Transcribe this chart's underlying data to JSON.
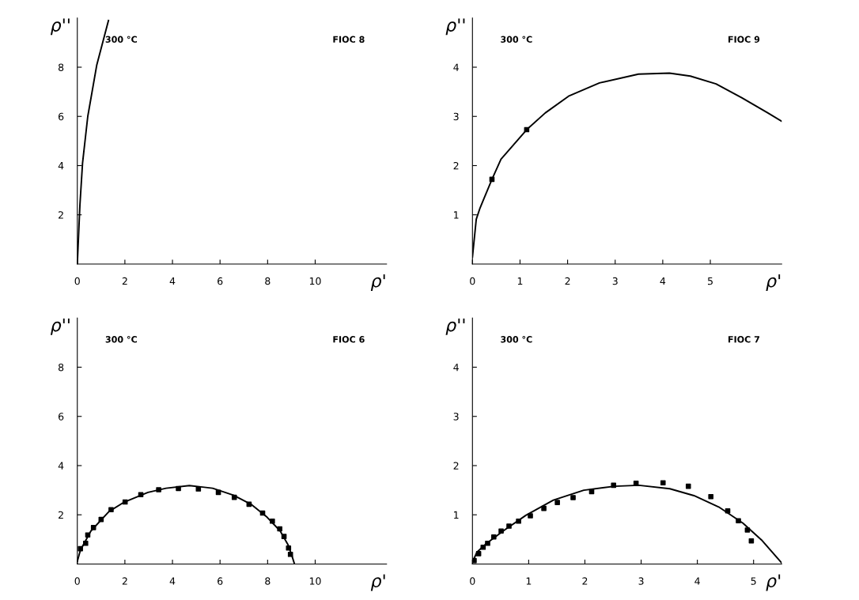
{
  "chart_data": [
    {
      "type": "line",
      "xlabel": "ρ'",
      "ylabel": "ρ''",
      "annotations": [
        "300 °C",
        "FIOC 8"
      ],
      "xlim": [
        0,
        13
      ],
      "ylim": [
        0,
        10
      ],
      "xticks": [
        0,
        2,
        4,
        6,
        8,
        10
      ],
      "yticks": [
        2,
        4,
        6,
        8
      ],
      "grid": false,
      "series": [
        {
          "color": "#000000",
          "x": [
            0,
            0.11,
            0.22,
            0.44,
            0.82,
            1.31
          ],
          "values": [
            0,
            2.4,
            4.1,
            6.0,
            8.1,
            9.9
          ]
        }
      ]
    },
    {
      "type": "line",
      "xlabel": "ρ'",
      "ylabel": "ρ''",
      "annotations": [
        "300 °C",
        "FIOC 9"
      ],
      "xlim": [
        0,
        6.5
      ],
      "ylim": [
        0,
        5
      ],
      "xticks": [
        0,
        1,
        2,
        3,
        4,
        5
      ],
      "yticks": [
        1,
        2,
        3,
        4
      ],
      "grid": false,
      "series": [
        {
          "color": "#000000",
          "x": [
            0,
            0.08,
            0.16,
            0.41,
            0.6,
            1.14,
            1.53,
            2.02,
            2.67,
            3.49,
            4.14,
            4.58,
            5.12,
            5.66,
            6.21,
            6.5
          ],
          "values": [
            0.14,
            0.91,
            1.14,
            1.72,
            2.13,
            2.73,
            3.07,
            3.41,
            3.68,
            3.86,
            3.88,
            3.82,
            3.66,
            3.38,
            3.07,
            2.9
          ]
        },
        {
          "type": "scatter",
          "marker": "square",
          "color": "#000000",
          "x": [
            0.41,
            1.14
          ],
          "values": [
            1.72,
            2.73
          ]
        }
      ]
    },
    {
      "type": "line",
      "xlabel": "ρ'",
      "ylabel": "ρ''",
      "annotations": [
        "300 °C",
        "FIOC 6"
      ],
      "xlim": [
        0,
        13
      ],
      "ylim": [
        0,
        10
      ],
      "xticks": [
        0,
        2,
        4,
        6,
        8,
        10
      ],
      "yticks": [
        2,
        4,
        6,
        8
      ],
      "grid": false,
      "series": [
        {
          "color": "#000000",
          "x": [
            0,
            0.13,
            0.57,
            1.33,
            1.98,
            2.97,
            3.73,
            4.71,
            5.69,
            6.56,
            7.33,
            7.98,
            8.53,
            8.86,
            9.02,
            9.13
          ],
          "values": [
            0.11,
            0.56,
            1.34,
            2.13,
            2.52,
            2.91,
            3.08,
            3.19,
            3.08,
            2.8,
            2.41,
            1.9,
            1.34,
            0.78,
            0.34,
            0
          ]
        },
        {
          "type": "scatter",
          "marker": "square",
          "color": "#000000",
          "x": [
            0.13,
            0.35,
            0.44,
            0.68,
            1.0,
            1.42,
            2.01,
            2.67,
            3.42,
            4.25,
            5.09,
            5.93,
            6.6,
            7.22,
            7.79,
            8.2,
            8.51,
            8.69,
            8.88,
            8.96
          ],
          "values": [
            0.62,
            0.84,
            1.18,
            1.48,
            1.81,
            2.21,
            2.52,
            2.82,
            3.02,
            3.07,
            3.05,
            2.91,
            2.71,
            2.43,
            2.07,
            1.74,
            1.43,
            1.12,
            0.65,
            0.39
          ]
        }
      ]
    },
    {
      "type": "line",
      "xlabel": "ρ'",
      "ylabel": "ρ''",
      "annotations": [
        "300 °C",
        "FIOC 7"
      ],
      "xlim": [
        0,
        5.5
      ],
      "ylim": [
        0,
        5
      ],
      "xticks": [
        0,
        1,
        2,
        3,
        4,
        5
      ],
      "yticks": [
        1,
        2,
        3,
        4
      ],
      "grid": false,
      "series": [
        {
          "color": "#000000",
          "x": [
            0,
            0.08,
            0.24,
            0.57,
            0.95,
            1.44,
            1.98,
            2.53,
            2.96,
            3.51,
            3.94,
            4.38,
            4.81,
            5.14,
            5.5
          ],
          "values": [
            0.04,
            0.24,
            0.41,
            0.69,
            0.99,
            1.3,
            1.5,
            1.58,
            1.6,
            1.53,
            1.39,
            1.16,
            0.83,
            0.49,
            0.02
          ]
        },
        {
          "type": "scatter",
          "marker": "square",
          "color": "#000000",
          "x": [
            0.03,
            0.11,
            0.19,
            0.27,
            0.38,
            0.51,
            0.65,
            0.82,
            1.03,
            1.27,
            1.51,
            1.79,
            2.12,
            2.51,
            2.91,
            3.39,
            3.84,
            4.24,
            4.54,
            4.73,
            4.89,
            4.96
          ],
          "values": [
            0.07,
            0.21,
            0.34,
            0.42,
            0.55,
            0.67,
            0.77,
            0.87,
            0.98,
            1.13,
            1.25,
            1.35,
            1.47,
            1.6,
            1.64,
            1.65,
            1.58,
            1.37,
            1.08,
            0.88,
            0.69,
            0.47
          ]
        }
      ]
    }
  ]
}
